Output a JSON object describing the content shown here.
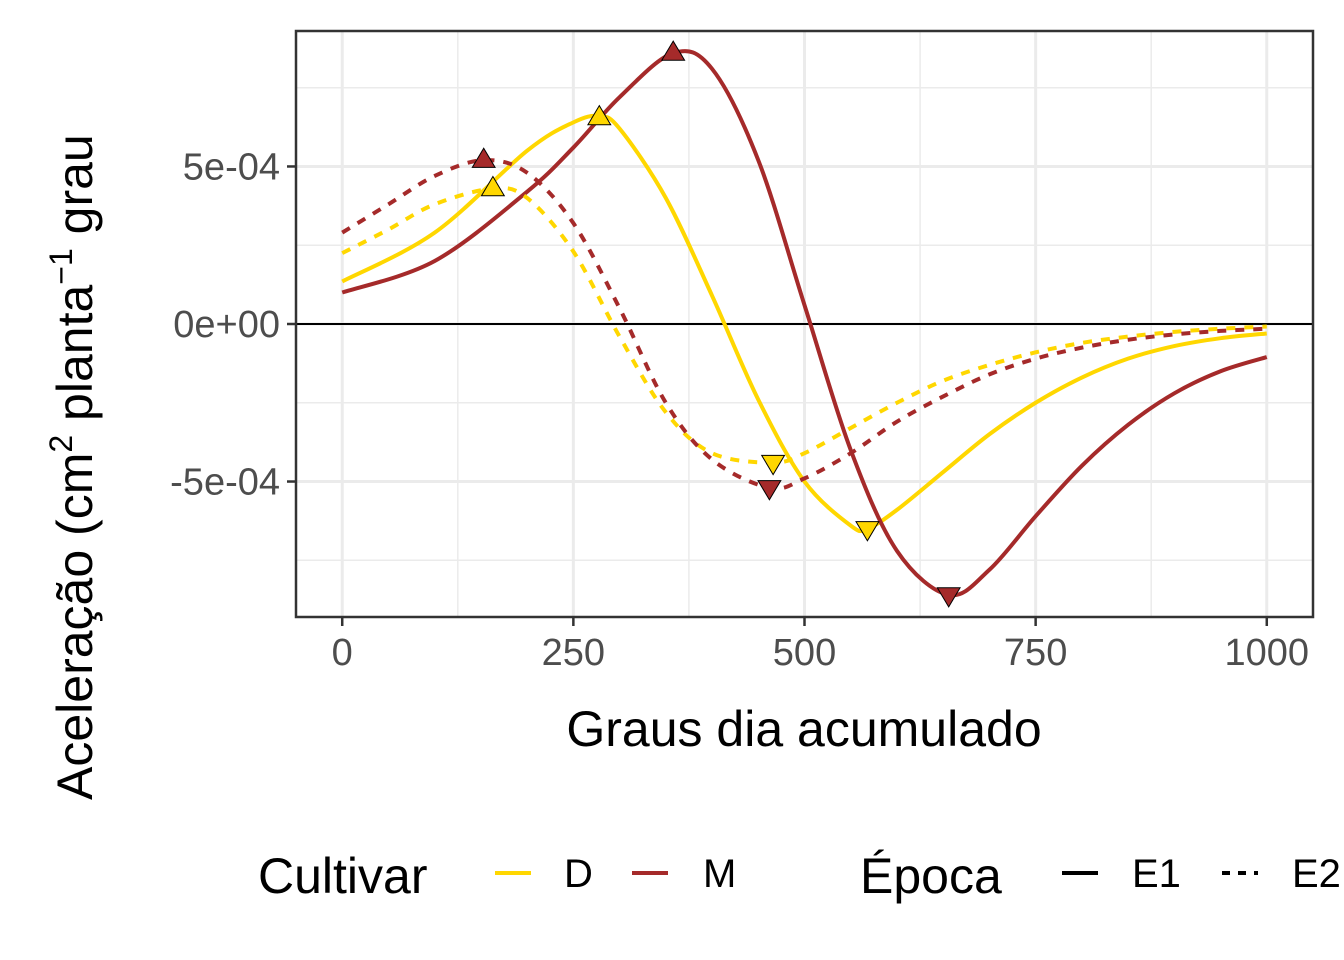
{
  "chart_data": {
    "type": "line",
    "title": "",
    "xlabel": "Graus dia acumulado",
    "ylabel": "Aceleração (cm² planta⁻¹ grau",
    "ylabel_parts": {
      "a": "Aceleração (cm",
      "sup1": "2",
      "b": " planta",
      "sup2": "−1",
      "c": " grau"
    },
    "xlim": [
      -50,
      1050
    ],
    "ylim": [
      -0.00093,
      0.00093
    ],
    "xticks": [
      0,
      250,
      500,
      750,
      1000
    ],
    "xtick_labels": [
      "0",
      "250",
      "500",
      "750",
      "1000"
    ],
    "yticks": [
      -0.0005,
      0,
      0.0005
    ],
    "ytick_labels": [
      "-5e-04",
      "0e+00",
      "5e-04"
    ],
    "grid": true,
    "zero_line": true,
    "legend": {
      "position": "bottom",
      "groups": [
        {
          "title": "Cultivar",
          "items": [
            {
              "label": "D",
              "color": "#FFD700"
            },
            {
              "label": "M",
              "color": "#A52A2A"
            }
          ]
        },
        {
          "title": "Época",
          "items": [
            {
              "label": "E1",
              "dash": "solid"
            },
            {
              "label": "E2",
              "dash": "dashed"
            }
          ]
        }
      ]
    },
    "series": [
      {
        "cultivar": "D",
        "epoca": "E1",
        "color": "#FFD700",
        "dash": "solid",
        "x": [
          0,
          100,
          200,
          250,
          278,
          300,
          350,
          400,
          450,
          500,
          550,
          568,
          600,
          650,
          700,
          750,
          800,
          850,
          900,
          950,
          1000
        ],
        "y": [
          0.000135,
          0.00029,
          0.00055,
          0.00064,
          0.00066,
          0.00062,
          0.0004,
          9e-05,
          -0.00024,
          -0.0005,
          -0.00064,
          -0.00065,
          -0.00059,
          -0.00047,
          -0.00035,
          -0.00025,
          -0.00017,
          -0.00011,
          -7e-05,
          -4.5e-05,
          -3e-05
        ]
      },
      {
        "cultivar": "M",
        "epoca": "E1",
        "color": "#A52A2A",
        "dash": "solid",
        "x": [
          0,
          100,
          200,
          250,
          300,
          358,
          400,
          450,
          500,
          550,
          600,
          656,
          700,
          750,
          800,
          850,
          900,
          950,
          1000
        ],
        "y": [
          0.0001,
          0.0002,
          0.00042,
          0.00056,
          0.00072,
          0.00086,
          0.00081,
          0.00052,
          6e-05,
          -0.0004,
          -0.00072,
          -0.00086,
          -0.00078,
          -0.00061,
          -0.00045,
          -0.00032,
          -0.00022,
          -0.00015,
          -0.000105
        ]
      },
      {
        "cultivar": "D",
        "epoca": "E2",
        "color": "#FFD700",
        "dash": "dashed",
        "x": [
          0,
          50,
          100,
          163,
          200,
          250,
          300,
          350,
          400,
          466,
          500,
          550,
          600,
          650,
          700,
          750,
          800,
          850,
          900,
          950,
          1000
        ],
        "y": [
          0.000225,
          0.0003,
          0.00038,
          0.00043,
          0.0004,
          0.00023,
          -4e-05,
          -0.00028,
          -0.00041,
          -0.00044,
          -0.00041,
          -0.00033,
          -0.00025,
          -0.00018,
          -0.00013,
          -9e-05,
          -6e-05,
          -4e-05,
          -2.5e-05,
          -1.5e-05,
          -8e-06
        ]
      },
      {
        "cultivar": "M",
        "epoca": "E2",
        "color": "#A52A2A",
        "dash": "dashed",
        "x": [
          0,
          50,
          100,
          153,
          200,
          250,
          300,
          350,
          400,
          462,
          500,
          550,
          600,
          650,
          700,
          750,
          800,
          850,
          900,
          950,
          1000
        ],
        "y": [
          0.00029,
          0.00038,
          0.00047,
          0.00052,
          0.00048,
          0.00032,
          5e-05,
          -0.00025,
          -0.00043,
          -0.00052,
          -0.00049,
          -0.00041,
          -0.00031,
          -0.00023,
          -0.00016,
          -0.00011,
          -7.5e-05,
          -5e-05,
          -3.3e-05,
          -2.2e-05,
          -1.5e-05
        ]
      }
    ],
    "markers": [
      {
        "cultivar": "M",
        "epoca": "E1",
        "shape": "triangle-up",
        "x": 358,
        "y": 0.00086,
        "color": "#A52A2A"
      },
      {
        "cultivar": "D",
        "epoca": "E1",
        "shape": "triangle-up",
        "x": 278,
        "y": 0.000655,
        "color": "#FFD700"
      },
      {
        "cultivar": "M",
        "epoca": "E2",
        "shape": "triangle-up",
        "x": 153,
        "y": 0.00052,
        "color": "#A52A2A"
      },
      {
        "cultivar": "D",
        "epoca": "E2",
        "shape": "triangle-up",
        "x": 163,
        "y": 0.00043,
        "color": "#FFD700"
      },
      {
        "cultivar": "D",
        "epoca": "E2",
        "shape": "triangle-down",
        "x": 466,
        "y": -0.00044,
        "color": "#FFD700"
      },
      {
        "cultivar": "M",
        "epoca": "E2",
        "shape": "triangle-down",
        "x": 462,
        "y": -0.00052,
        "color": "#A52A2A"
      },
      {
        "cultivar": "D",
        "epoca": "E1",
        "shape": "triangle-down",
        "x": 568,
        "y": -0.00065,
        "color": "#FFD700"
      },
      {
        "cultivar": "M",
        "epoca": "E1",
        "shape": "triangle-down",
        "x": 656,
        "y": -0.00086,
        "color": "#A52A2A"
      }
    ]
  }
}
